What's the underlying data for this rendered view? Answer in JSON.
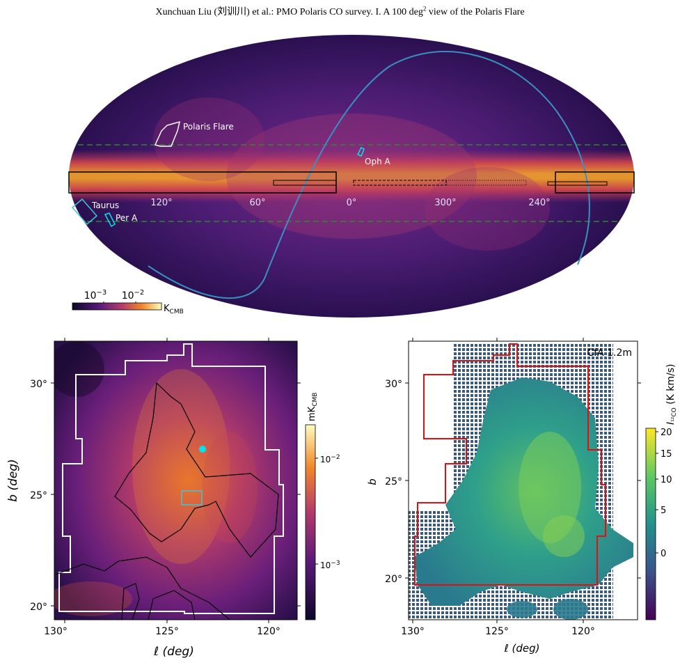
{
  "header": {
    "text": "Xunchuan Liu (刘训川)  et al.: PMO Polaris CO survey. I. A 100 deg",
    "sup": "2",
    "text_end": " view of the Polaris Flare"
  },
  "allsky": {
    "labels": {
      "polaris_flare": "Polaris Flare",
      "oph_a": "Oph A",
      "taurus": "Taurus",
      "per_a": "Per A"
    },
    "longitude_ticks": [
      "120°",
      "60°",
      "0°",
      "300°",
      "240°"
    ],
    "colorbar": {
      "tick1": "10",
      "tick1_exp": "−3",
      "tick2": "10",
      "tick2_exp": "−2",
      "unit": "K",
      "unit_sub": "CMB"
    },
    "colors": {
      "ecliptic": "#3a8fc0",
      "galactic_lat_lines": "#2a8a2a",
      "survey_box": "#000000"
    }
  },
  "left_panel": {
    "ylabel": "b (deg)",
    "xlabel": "ℓ (deg)",
    "xticks": [
      "130°",
      "125°",
      "120°"
    ],
    "yticks": [
      "30°",
      "25°",
      "20°"
    ],
    "colorbar": {
      "unit": "mK",
      "unit_sub": "CMB",
      "tick1": "10",
      "tick1_exp": "−2",
      "tick2": "10",
      "tick2_exp": "−3"
    },
    "colors": {
      "footprint": "#ffffff",
      "contour": "#000000",
      "marker": "#00e5ee",
      "box": "#3fc6d6"
    }
  },
  "right_panel": {
    "annotation": "CfA 1.2m",
    "ylabel": "b",
    "xlabel": "ℓ (deg)",
    "xticks": [
      "130°",
      "125°",
      "120°"
    ],
    "yticks": [
      "30°",
      "25°",
      "20°"
    ],
    "colorbar": {
      "label_prefix": "I",
      "label_sub": "¹²CO",
      "label_unit": " (K km/s)",
      "ticks": [
        "20",
        "15",
        "10",
        "5",
        "0"
      ]
    },
    "colors": {
      "footprint": "#e01010",
      "grid": "#3c5a78"
    }
  }
}
